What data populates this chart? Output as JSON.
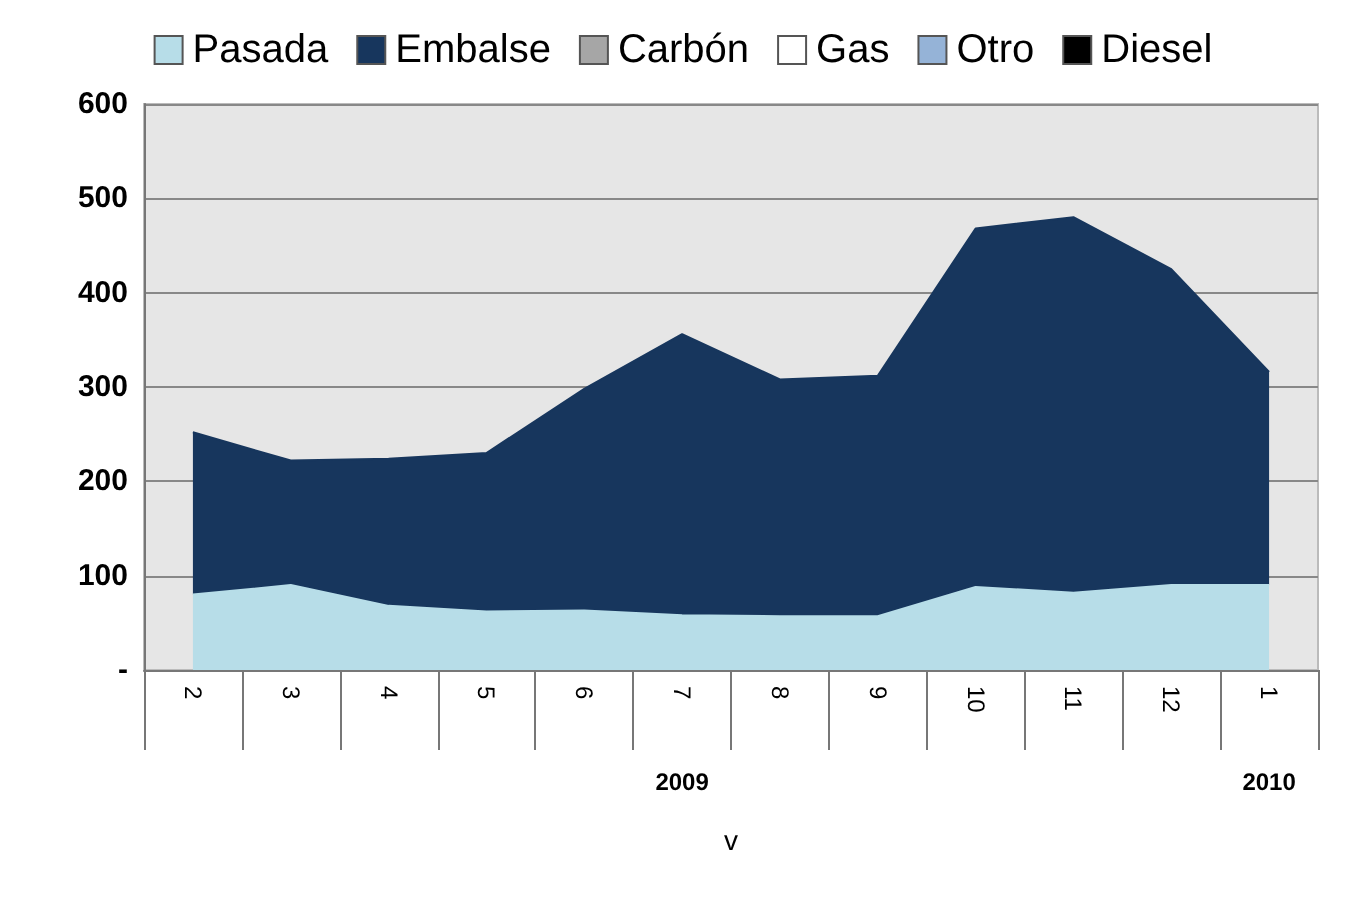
{
  "chart_data": {
    "type": "area",
    "stacked": true,
    "xlabel": "v",
    "categories": [
      "2",
      "3",
      "4",
      "5",
      "6",
      "7",
      "8",
      "9",
      "10",
      "11",
      "12",
      "1"
    ],
    "series": [
      {
        "name": "Pasada",
        "color": "#b7dde8",
        "values": [
          80,
          90,
          68,
          62,
          63,
          58,
          57,
          57,
          88,
          82,
          90,
          90
        ]
      },
      {
        "name": "Embalse",
        "color": "#17365d",
        "values": [
          172,
          132,
          156,
          168,
          235,
          298,
          251,
          255,
          380,
          398,
          335,
          226
        ]
      },
      {
        "name": "Carbón",
        "color": "#a6a6a6",
        "values": [
          null,
          null,
          null,
          null,
          null,
          null,
          null,
          null,
          null,
          null,
          null,
          null
        ]
      },
      {
        "name": "Gas",
        "color": "#ffffff",
        "values": [
          null,
          null,
          null,
          null,
          null,
          null,
          null,
          null,
          null,
          null,
          null,
          null
        ]
      },
      {
        "name": "Otro",
        "color": "#95b3d7",
        "values": [
          null,
          null,
          null,
          null,
          null,
          null,
          null,
          null,
          null,
          null,
          null,
          null
        ]
      },
      {
        "name": "Diesel",
        "color": "#000000",
        "values": [
          null,
          null,
          null,
          null,
          null,
          null,
          null,
          null,
          null,
          null,
          null,
          null
        ]
      }
    ],
    "ylim": [
      0,
      600
    ],
    "yticks": [
      {
        "value": 0,
        "label": "-"
      },
      100,
      200,
      300,
      400,
      500,
      600
    ],
    "grid": "y",
    "legend": "top",
    "annotations": [
      "2009",
      "2010"
    ]
  }
}
